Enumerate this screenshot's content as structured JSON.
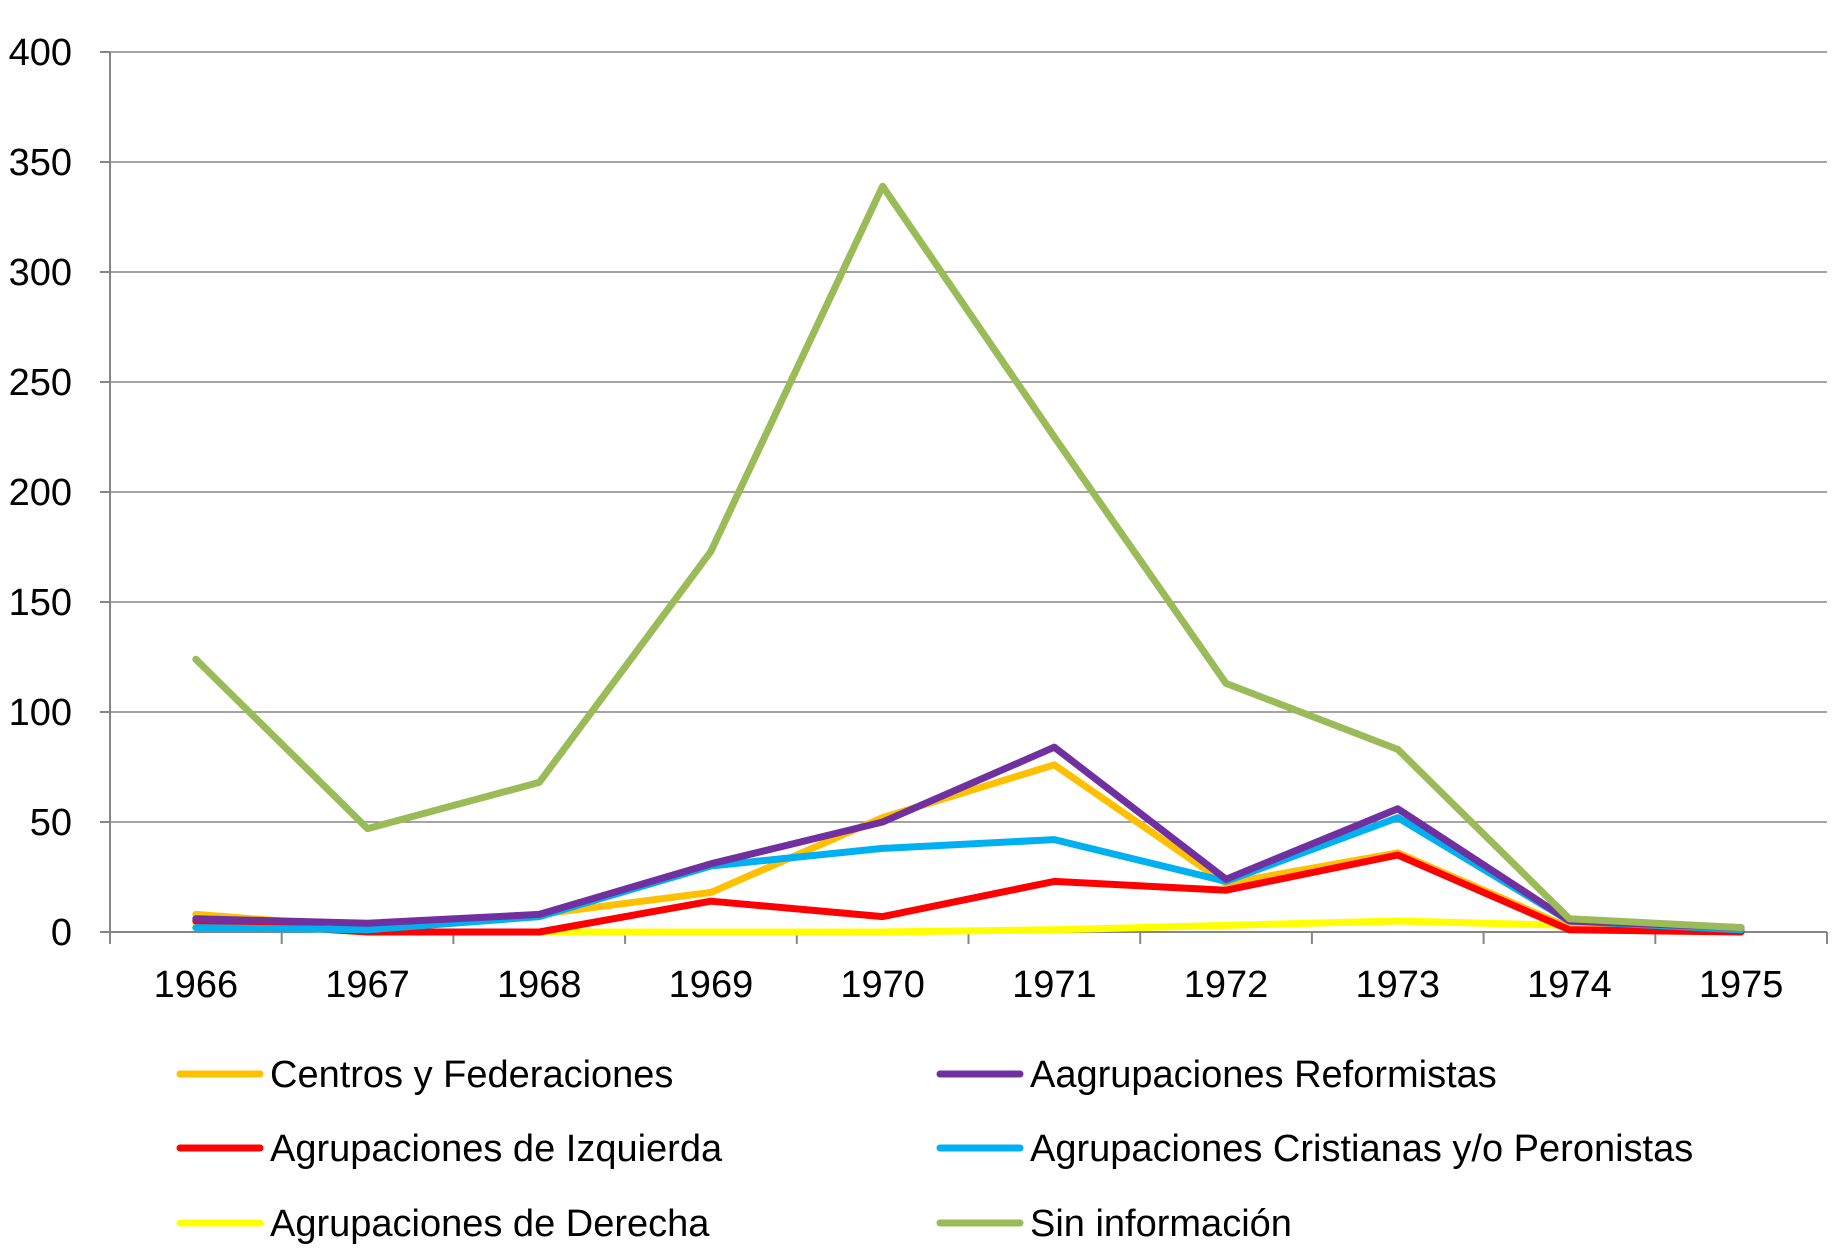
{
  "chart_data": {
    "type": "line",
    "title": "",
    "categories": [
      "1966",
      "1967",
      "1968",
      "1969",
      "1970",
      "1971",
      "1972",
      "1973",
      "1974",
      "1975"
    ],
    "ylim": [
      0,
      400
    ],
    "yticks": [
      0,
      50,
      100,
      150,
      200,
      250,
      300,
      350,
      400
    ],
    "grid": true,
    "legend_position": "bottom",
    "series": [
      {
        "name": "Centros y Federaciones",
        "color": "#FFC000",
        "values": [
          8,
          2,
          8,
          18,
          52,
          76,
          22,
          36,
          2,
          1
        ]
      },
      {
        "name": "Aagrupaciones Reformistas",
        "color": "#7030A0",
        "values": [
          6,
          4,
          8,
          31,
          50,
          84,
          24,
          56,
          5,
          2
        ]
      },
      {
        "name": "Agrupaciones de Izquierda",
        "color": "#FF0000",
        "values": [
          5,
          0,
          0,
          14,
          7,
          23,
          19,
          35,
          1,
          0
        ]
      },
      {
        "name": "Agrupaciones Cristianas y/o Peronistas",
        "color": "#00B0F0",
        "values": [
          2,
          1,
          7,
          30,
          38,
          42,
          23,
          52,
          5,
          1
        ]
      },
      {
        "name": "Agrupaciones de Derecha",
        "color": "#FFFF00",
        "values": [
          4,
          0,
          0,
          0,
          0,
          1,
          3,
          5,
          3,
          1
        ]
      },
      {
        "name": "Sin información",
        "color": "#9BBB59",
        "values": [
          124,
          47,
          68,
          173,
          339,
          225,
          113,
          83,
          6,
          2
        ]
      }
    ]
  }
}
